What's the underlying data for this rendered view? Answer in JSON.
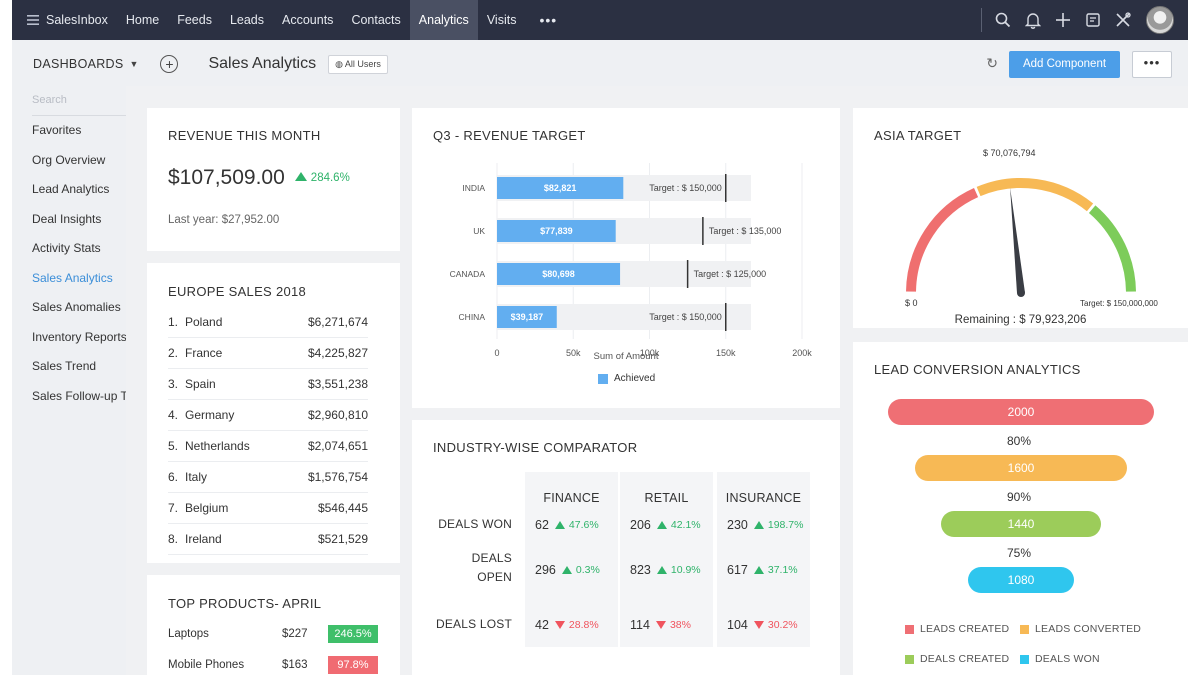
{
  "nav": {
    "brand": "SalesInbox",
    "items": [
      "Home",
      "Feeds",
      "Leads",
      "Accounts",
      "Contacts",
      "Analytics",
      "Visits"
    ],
    "active": "Analytics",
    "more": "•••"
  },
  "subheader": {
    "dashboards": "DASHBOARDS",
    "title": "Sales Analytics",
    "users_badge": "All Users",
    "add_component": "Add Component",
    "more": "•••"
  },
  "sidebar": {
    "search_placeholder": "Search",
    "items": [
      "Favorites",
      "Org Overview",
      "Lead Analytics",
      "Deal Insights",
      "Activity Stats",
      "Sales Analytics",
      "Sales Anomalies",
      "Inventory Reports",
      "Sales Trend",
      "Sales Follow-up Trends"
    ],
    "active_index": 5
  },
  "revenue": {
    "title": "REVENUE THIS MONTH",
    "value": "$107,509.00",
    "change": "284.6%",
    "last_year": "Last year: $27,952.00"
  },
  "europe": {
    "title": "EUROPE SALES 2018",
    "rows": [
      {
        "rank": "1.",
        "country": "Poland",
        "amount": "$6,271,674"
      },
      {
        "rank": "2.",
        "country": "France",
        "amount": "$4,225,827"
      },
      {
        "rank": "3.",
        "country": "Spain",
        "amount": "$3,551,238"
      },
      {
        "rank": "4.",
        "country": "Germany",
        "amount": "$2,960,810"
      },
      {
        "rank": "5.",
        "country": "Netherlands",
        "amount": "$2,074,651"
      },
      {
        "rank": "6.",
        "country": "Italy",
        "amount": "$1,576,754"
      },
      {
        "rank": "7.",
        "country": "Belgium",
        "amount": "$546,445"
      },
      {
        "rank": "8.",
        "country": "Ireland",
        "amount": "$521,529"
      }
    ]
  },
  "products": {
    "title": "TOP PRODUCTS- APRIL",
    "rows": [
      {
        "name": "Laptops",
        "amount": "$227",
        "change": "246.5%",
        "color": "#3fbf6a"
      },
      {
        "name": "Mobile Phones",
        "amount": "$163",
        "change": "97.8%",
        "color": "#f06b72"
      }
    ]
  },
  "q3": {
    "title": "Q3 - REVENUE TARGET",
    "xlabel": "Sum of Amount",
    "legend": "Achieved",
    "achieved_color": "#62aef0",
    "ticks": [
      "0",
      "50k",
      "100k",
      "150k",
      "200k"
    ],
    "chart_data": {
      "type": "bar",
      "orientation": "horizontal",
      "categories": [
        "INDIA",
        "UK",
        "CANADA",
        "CHINA"
      ],
      "achieved": [
        82821,
        77839,
        80698,
        39187
      ],
      "achieved_labels": [
        "$82,821",
        "$77,839",
        "$80,698",
        "$39,187"
      ],
      "targets": [
        150000,
        135000,
        125000,
        150000
      ],
      "target_labels": [
        "Target : $ 150,000",
        "Target : $ 135,000",
        "Target : $ 125,000",
        "Target : $ 150,000"
      ],
      "xlim": [
        0,
        200000
      ]
    }
  },
  "industry": {
    "title": "INDUSTRY-WISE COMPARATOR",
    "columns": [
      "FINANCE",
      "RETAIL",
      "INSURANCE"
    ],
    "rows": [
      {
        "label_lines": [
          "DEALS WON"
        ],
        "cells": [
          {
            "value": "62",
            "change": "47.6%",
            "dir": "up"
          },
          {
            "value": "206",
            "change": "42.1%",
            "dir": "up"
          },
          {
            "value": "230",
            "change": "198.7%",
            "dir": "up"
          }
        ]
      },
      {
        "label_lines": [
          "DEALS",
          "OPEN"
        ],
        "cells": [
          {
            "value": "296",
            "change": "0.3%",
            "dir": "up"
          },
          {
            "value": "823",
            "change": "10.9%",
            "dir": "up"
          },
          {
            "value": "617",
            "change": "37.1%",
            "dir": "up"
          }
        ]
      },
      {
        "label_lines": [
          "DEALS LOST"
        ],
        "cells": [
          {
            "value": "42",
            "change": "28.8%",
            "dir": "down"
          },
          {
            "value": "114",
            "change": "38%",
            "dir": "down"
          },
          {
            "value": "104",
            "change": "30.2%",
            "dir": "down"
          }
        ]
      }
    ]
  },
  "asia": {
    "title": "ASIA TARGET",
    "current_label": "$ 70,076,794",
    "min_label": "$ 0",
    "max_label": "Target: $ 150,000,000",
    "remaining": "Remaining : $ 79,923,206",
    "chart_data": {
      "type": "gauge",
      "value": 70076794,
      "min": 0,
      "max": 150000000,
      "bands": [
        {
          "color": "#ef6f6f",
          "to": 0.37
        },
        {
          "color": "#f7b955",
          "to": 0.72
        },
        {
          "color": "#7dcc5a",
          "to": 1.0
        }
      ]
    }
  },
  "funnel": {
    "title": "LEAD CONVERSION ANALYTICS",
    "chart_data": {
      "type": "funnel",
      "stages": [
        {
          "name": "LEADS CREATED",
          "value": "2000",
          "color": "#ef6f74"
        },
        {
          "name": "LEADS CONVERTED",
          "value": "1600",
          "color": "#f7b955"
        },
        {
          "name": "DEALS CREATED",
          "value": "1440",
          "color": "#9ccc5a"
        },
        {
          "name": "DEALS WON",
          "value": "1080",
          "color": "#2fc6ee"
        }
      ],
      "conversion": [
        "80%",
        "90%",
        "75%"
      ]
    }
  }
}
